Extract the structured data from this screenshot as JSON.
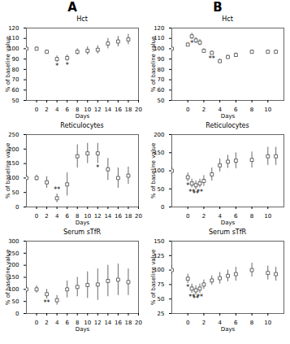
{
  "panel_labels": [
    "A",
    "B"
  ],
  "chart_data": [
    {
      "type": "scatter",
      "title": "Hct",
      "marker": "square",
      "color": "#444444",
      "x": [
        -2,
        0,
        2,
        4,
        6,
        8,
        10,
        12,
        14,
        16,
        18
      ],
      "values": [
        100,
        100,
        97,
        90,
        91,
        97,
        98,
        99,
        105,
        107,
        109
      ],
      "yerr": [
        2,
        2,
        2,
        3,
        3,
        3,
        4,
        4,
        5,
        5,
        5
      ],
      "annotations": [
        {
          "x": 4,
          "text": "*"
        },
        {
          "x": 6,
          "text": "*"
        }
      ],
      "xlabel": "Days",
      "ylabel": "% of baseline value",
      "xlim": [
        -2,
        20
      ],
      "xticks": [
        0,
        2,
        4,
        6,
        8,
        10,
        12,
        14,
        16,
        18,
        20
      ],
      "ylim": [
        50,
        120
      ],
      "yticks": [
        50,
        60,
        70,
        80,
        90,
        100,
        110,
        120
      ]
    },
    {
      "type": "scatter",
      "title": "Hct",
      "marker": "square",
      "color": "#444444",
      "x": [
        -2,
        0,
        0.5,
        1,
        1.5,
        2,
        3,
        4,
        5,
        6,
        8,
        10,
        11
      ],
      "values": [
        100,
        104,
        112,
        108,
        106,
        98,
        96,
        88,
        92,
        94,
        97,
        97,
        97
      ],
      "yerr": [
        2,
        2,
        3,
        3,
        3,
        2,
        2,
        2,
        2,
        2,
        2,
        2,
        2
      ],
      "annotations": [
        {
          "x": 0.5,
          "text": "*"
        },
        {
          "x": 3,
          "text": "**"
        }
      ],
      "xlabel": "Days",
      "ylabel": "% of baseline value",
      "xlim": [
        -2,
        12
      ],
      "xticks": [
        0,
        2,
        4,
        6,
        8,
        10
      ],
      "ylim": [
        50,
        120
      ],
      "yticks": [
        50,
        60,
        70,
        80,
        90,
        100,
        110,
        120
      ]
    },
    {
      "type": "scatter",
      "title": "Reticulocytes",
      "marker": "square",
      "color": "#444444",
      "x": [
        -2,
        0,
        2,
        4,
        6,
        8,
        10,
        12,
        14,
        16,
        18
      ],
      "values": [
        100,
        100,
        85,
        30,
        78,
        175,
        185,
        185,
        130,
        100,
        108
      ],
      "yerr": [
        10,
        10,
        20,
        15,
        40,
        40,
        35,
        35,
        38,
        35,
        30
      ],
      "annotations": [
        {
          "x": 4,
          "text": "**"
        },
        {
          "x": 12,
          "text": "*"
        }
      ],
      "xlabel": "Days",
      "ylabel": "% of baseline value",
      "xlim": [
        -2,
        20
      ],
      "xticks": [
        0,
        2,
        4,
        6,
        8,
        10,
        12,
        14,
        16,
        18,
        20
      ],
      "ylim": [
        0,
        250
      ],
      "yticks": [
        0,
        50,
        100,
        150,
        200,
        250
      ]
    },
    {
      "type": "scatter",
      "title": "Reticulocytes",
      "marker": "square",
      "color": "#444444",
      "x": [
        -2,
        0,
        0.5,
        1,
        1.5,
        2,
        3,
        4,
        5,
        6,
        8,
        10,
        11
      ],
      "values": [
        100,
        82,
        65,
        60,
        65,
        72,
        90,
        115,
        125,
        128,
        130,
        140,
        140
      ],
      "yerr": [
        10,
        12,
        12,
        12,
        12,
        15,
        18,
        18,
        18,
        22,
        22,
        25,
        25
      ],
      "annotations": [
        {
          "x": 0,
          "text": "*"
        },
        {
          "x": 0.5,
          "text": "**"
        },
        {
          "x": 1,
          "text": "**"
        },
        {
          "x": 1.5,
          "text": "**"
        }
      ],
      "xlabel": "Days",
      "ylabel": "% of baseline value",
      "xlim": [
        -2,
        12
      ],
      "xticks": [
        0,
        2,
        4,
        6,
        8,
        10
      ],
      "ylim": [
        0,
        200
      ],
      "yticks": [
        0,
        50,
        100,
        150,
        200
      ]
    },
    {
      "type": "scatter",
      "title": "Serum sTfR",
      "marker": "square",
      "color": "#444444",
      "x": [
        -2,
        0,
        2,
        4,
        6,
        8,
        10,
        12,
        14,
        16,
        18
      ],
      "values": [
        100,
        100,
        80,
        55,
        100,
        110,
        118,
        120,
        135,
        140,
        130
      ],
      "yerr": [
        15,
        15,
        20,
        20,
        35,
        40,
        55,
        65,
        65,
        65,
        55
      ],
      "annotations": [
        {
          "x": 2,
          "text": "**"
        }
      ],
      "xlabel": "Days",
      "ylabel": "% of baseline value",
      "xlim": [
        -2,
        20
      ],
      "xticks": [
        0,
        2,
        4,
        6,
        8,
        10,
        12,
        14,
        16,
        18,
        20
      ],
      "ylim": [
        0,
        300
      ],
      "yticks": [
        0,
        50,
        100,
        150,
        200,
        250,
        300
      ]
    },
    {
      "type": "scatter",
      "title": "Serum sTfR",
      "marker": "square",
      "color": "#444444",
      "x": [
        -2,
        0,
        0.5,
        1,
        1.5,
        2,
        3,
        4,
        5,
        6,
        8,
        10,
        11
      ],
      "values": [
        100,
        85,
        68,
        65,
        68,
        75,
        82,
        86,
        90,
        93,
        100,
        95,
        93
      ],
      "yerr": [
        8,
        8,
        8,
        8,
        8,
        8,
        8,
        10,
        10,
        12,
        12,
        12,
        12
      ],
      "annotations": [
        {
          "x": 0,
          "text": "*"
        },
        {
          "x": 0.5,
          "text": "**"
        },
        {
          "x": 1,
          "text": "**"
        },
        {
          "x": 1.5,
          "text": "**"
        }
      ],
      "xlabel": "Days",
      "ylabel": "% of baseline value",
      "xlim": [
        -2,
        12
      ],
      "xticks": [
        0,
        2,
        4,
        6,
        8,
        10
      ],
      "ylim": [
        25,
        150
      ],
      "yticks": [
        25,
        50,
        75,
        100,
        125,
        150
      ]
    }
  ]
}
